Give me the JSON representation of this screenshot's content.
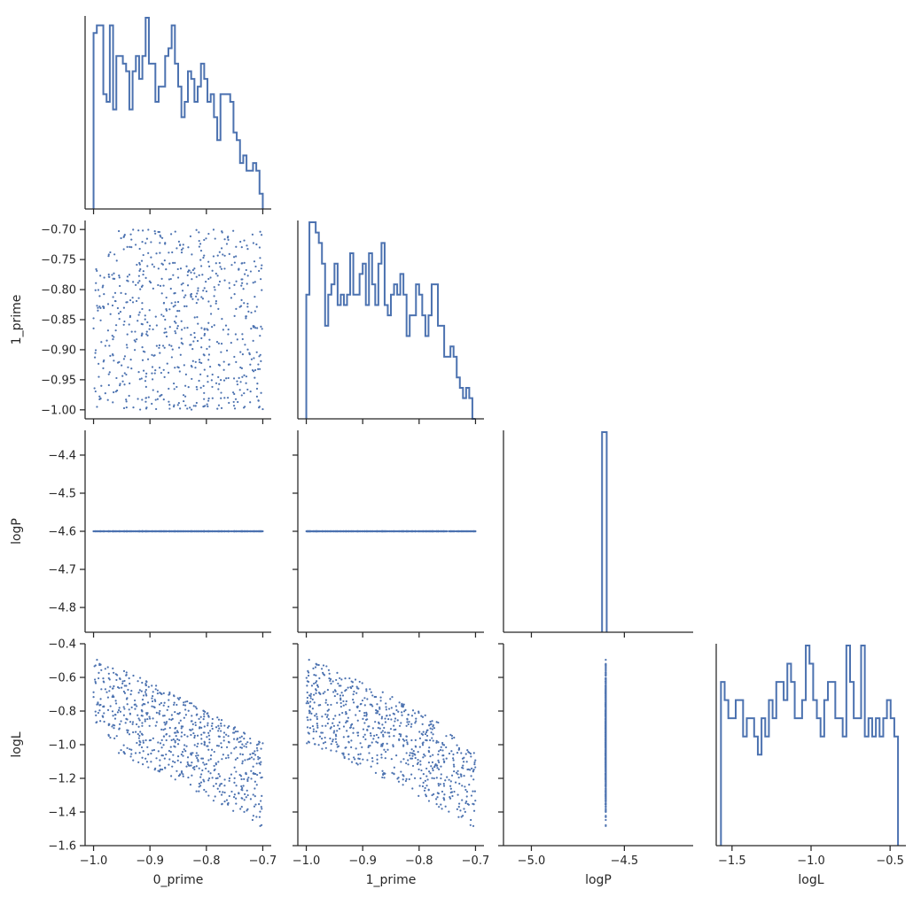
{
  "chart_data": {
    "type": "corner",
    "variables": [
      "0_prime",
      "1_prime",
      "logP",
      "logL"
    ],
    "axis_labels": {
      "x": [
        "0_prime",
        "1_prime",
        "logP",
        "logL"
      ],
      "y": [
        "",
        "1_prime",
        "logP",
        "logL"
      ]
    },
    "ranges": {
      "0_prime": [
        -1.015,
        -0.685
      ],
      "1_prime": [
        -1.015,
        -0.685
      ],
      "logP": [
        -5.15,
        -4.13
      ],
      "logL": [
        -1.6,
        -0.4
      ]
    },
    "row_ranges": {
      "1_prime": [
        -1.015,
        -0.685
      ],
      "logP": [
        -4.865,
        -4.335
      ],
      "logL": [
        -1.6,
        -0.4
      ]
    },
    "ticks": {
      "x": {
        "0_prime": [
          -1.0,
          -0.9,
          -0.8,
          -0.7
        ],
        "1_prime": [
          -1.0,
          -0.9,
          -0.8,
          -0.7
        ],
        "logP": [
          -5.0,
          -4.5
        ],
        "logL": [
          -1.5,
          -1.0,
          -0.5
        ]
      },
      "y": {
        "1_prime": [
          -1.0,
          -0.95,
          -0.9,
          -0.85,
          -0.8,
          -0.75,
          -0.7
        ],
        "logP": [
          -4.8,
          -4.7,
          -4.6,
          -4.5,
          -4.4
        ],
        "logL": [
          -1.6,
          -1.4,
          -1.2,
          -1.0,
          -0.8,
          -0.6,
          -0.4
        ]
      }
    },
    "tick_labels": {
      "x": {
        "0_prime": [
          "−1.0",
          "−0.9",
          "−0.8",
          "−0.7"
        ],
        "1_prime": [
          "−1.0",
          "−0.9",
          "−0.8",
          "−0.7"
        ],
        "logP": [
          "−5.0",
          "−4.5"
        ],
        "logL": [
          "−1.5",
          "−1.0",
          "−0.5"
        ]
      },
      "y": {
        "1_prime": [
          "−1.00",
          "−0.95",
          "−0.90",
          "−0.85",
          "−0.80",
          "−0.75",
          "−0.70"
        ],
        "logP": [
          "−4.8",
          "−4.7",
          "−4.6",
          "−4.5",
          "−4.4"
        ],
        "logL": [
          "−1.6",
          "−1.4",
          "−1.2",
          "−1.0",
          "−0.8",
          "−0.6",
          "−0.4"
        ]
      }
    },
    "histograms": {
      "0_prime": {
        "range": [
          -1.0,
          -0.7
        ],
        "counts": [
          23,
          24,
          24,
          15,
          14,
          24,
          13,
          20,
          20,
          19,
          18,
          13,
          18,
          20,
          17,
          20,
          25,
          19,
          19,
          14,
          16,
          16,
          20,
          21,
          24,
          19,
          16,
          12,
          14,
          18,
          17,
          14,
          16,
          19,
          17,
          14,
          15,
          12,
          9,
          15,
          15,
          15,
          14,
          10,
          9,
          6,
          7,
          5,
          5,
          6,
          5,
          2
        ]
      },
      "1_prime": {
        "range": [
          -1.0,
          -0.7
        ],
        "counts": [
          12,
          19,
          19,
          18,
          17,
          15,
          9,
          12,
          13,
          15,
          11,
          12,
          11,
          12,
          16,
          12,
          12,
          14,
          15,
          11,
          16,
          13,
          11,
          15,
          17,
          11,
          10,
          12,
          13,
          12,
          14,
          12,
          8,
          10,
          10,
          13,
          12,
          10,
          8,
          10,
          13,
          13,
          9,
          9,
          6,
          6,
          7,
          6,
          4,
          3,
          2,
          3,
          2,
          0
        ]
      },
      "logP": {
        "bins": [
          [
            -4.62,
            -4.595
          ]
        ],
        "counts": [
          1
        ]
      },
      "logL": {
        "range": [
          -1.57,
          -0.45
        ],
        "counts": [
          9,
          8,
          7,
          7,
          8,
          8,
          6,
          7,
          7,
          6,
          5,
          7,
          6,
          8,
          7,
          9,
          9,
          8,
          10,
          9,
          7,
          7,
          8,
          11,
          10,
          8,
          7,
          6,
          8,
          9,
          9,
          7,
          7,
          6,
          11,
          9,
          7,
          7,
          11,
          6,
          7,
          6,
          7,
          6,
          7,
          8,
          7,
          6
        ]
      }
    },
    "scatter_point_count": 700,
    "logP_constant": -4.6,
    "color": "#4c72b0",
    "histtype": "step",
    "grid": false
  }
}
